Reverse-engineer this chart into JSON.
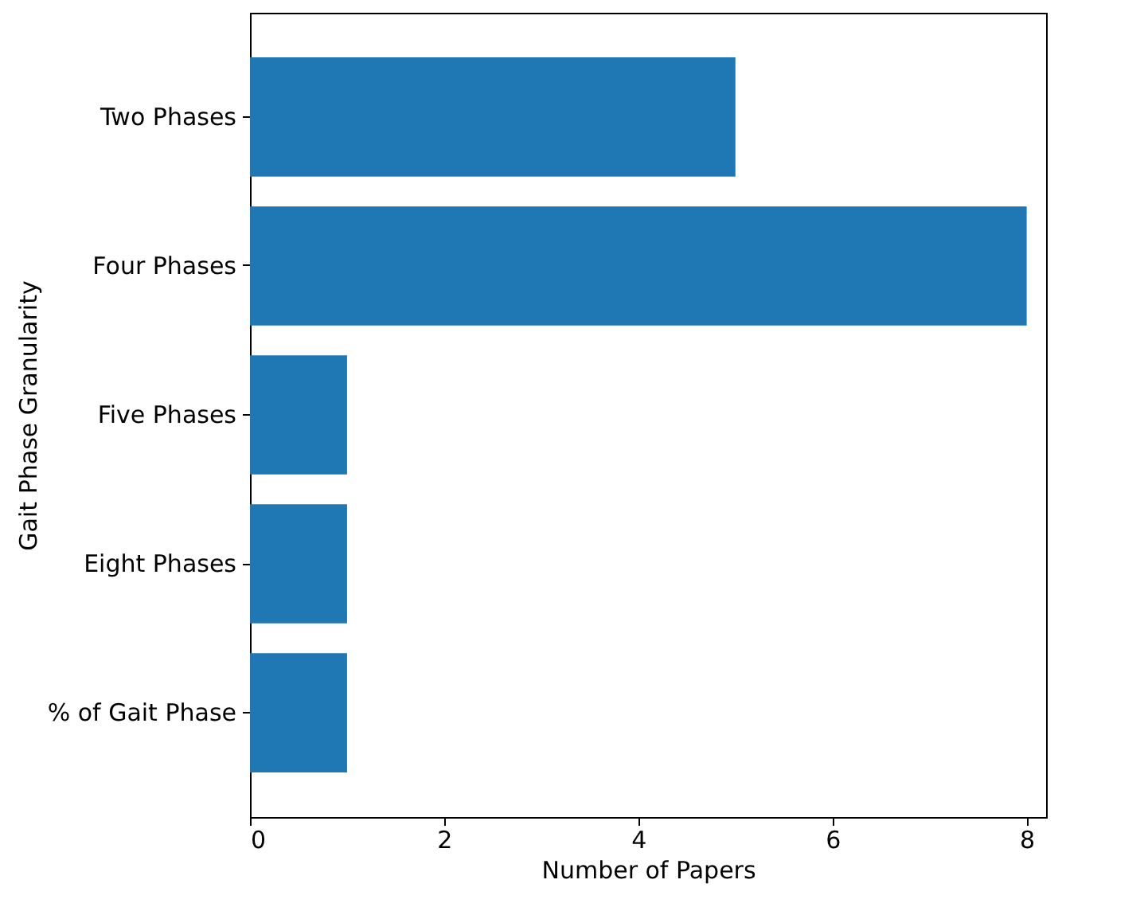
{
  "chart_data": {
    "type": "bar",
    "orientation": "horizontal",
    "xlabel": "Number of Papers",
    "ylabel": "Gait Phase Granularity",
    "categories": [
      "Two Phases",
      "Four Phases",
      "Five Phases",
      "Eight Phases",
      "% of Gait Phase"
    ],
    "values": [
      5,
      8,
      1,
      1,
      1
    ],
    "color": "#1f77b4",
    "xlim": [
      0,
      8.2
    ],
    "xticks": [
      0,
      2,
      4,
      6,
      8
    ],
    "grid": false
  }
}
